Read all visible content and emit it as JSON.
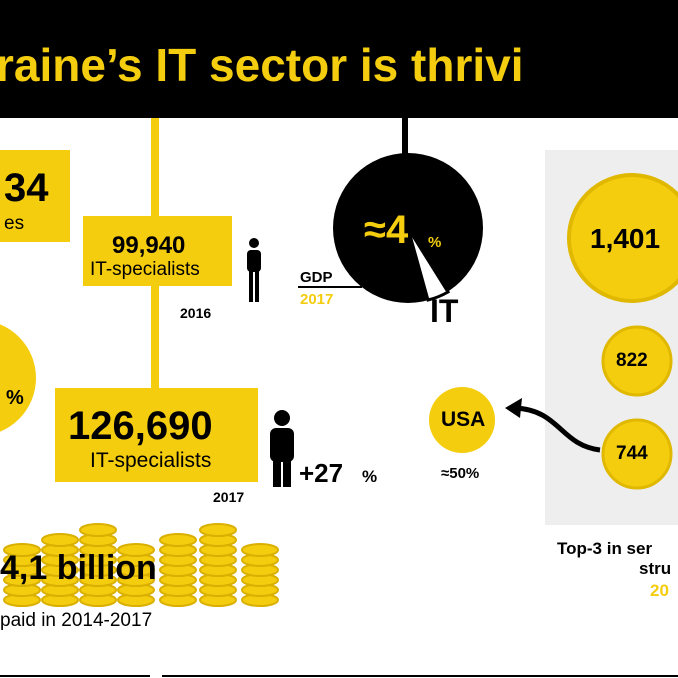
{
  "header": {
    "title": "raine’s IT sector is thrivi"
  },
  "left_box": {
    "value": "34",
    "label": "es"
  },
  "left_circle": {
    "unit": "%"
  },
  "specialists_2016": {
    "value": "99,940",
    "label": "IT-specialists",
    "year": "2016"
  },
  "gdp": {
    "value": "≈4",
    "unit": "%",
    "label": "GDP",
    "year": "2017",
    "slice": "IT"
  },
  "specialists_2017": {
    "value": "126,690",
    "label": "IT-specialists",
    "year": "2017",
    "growth": "+27",
    "growth_unit": "%"
  },
  "taxes": {
    "value": "4,1 billion",
    "label": "paid in 2014-2017"
  },
  "export": {
    "top": "USA",
    "share": "≈50%",
    "coins": [
      "1,401",
      "822",
      "744"
    ],
    "caption": [
      "Top-3 in ser",
      "stru",
      "20"
    ]
  }
}
